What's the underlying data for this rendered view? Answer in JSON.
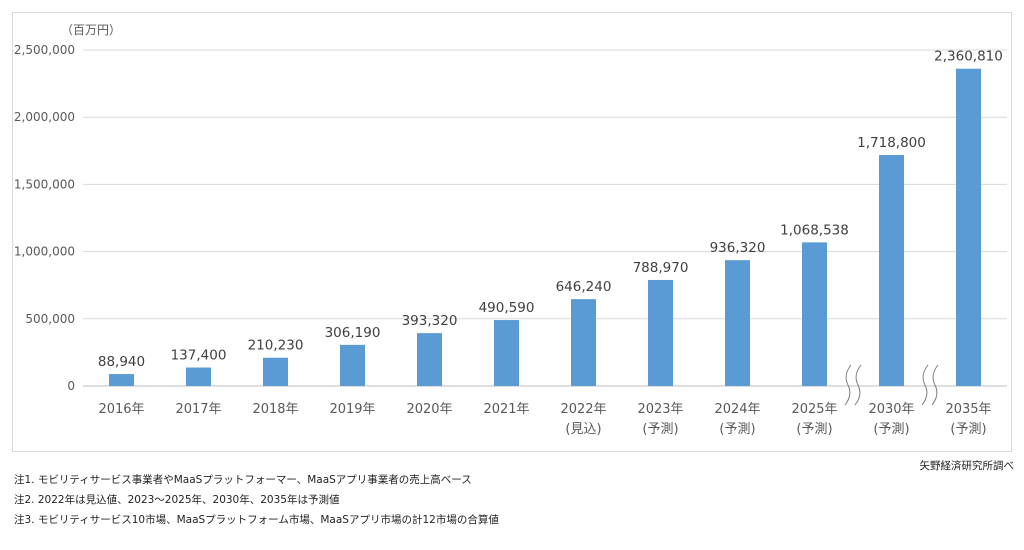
{
  "chart_data": {
    "type": "bar",
    "unit_label": "（百万円）",
    "categories": [
      [
        "2016年"
      ],
      [
        "2017年"
      ],
      [
        "2018年"
      ],
      [
        "2019年"
      ],
      [
        "2020年"
      ],
      [
        "2021年"
      ],
      [
        "2022年",
        "(見込)"
      ],
      [
        "2023年",
        "(予測)"
      ],
      [
        "2024年",
        "(予測)"
      ],
      [
        "2025年",
        "(予測)"
      ],
      [
        "2030年",
        "(予測)"
      ],
      [
        "2035年",
        "(予測)"
      ]
    ],
    "values": [
      88940,
      137400,
      210230,
      306190,
      393320,
      490590,
      646240,
      788970,
      936320,
      1068538,
      1718800,
      2360810
    ],
    "value_labels": [
      "88,940",
      "137,400",
      "210,230",
      "306,190",
      "393,320",
      "490,590",
      "646,240",
      "788,970",
      "936,320",
      "1,068,538",
      "1,718,800",
      "2,360,810"
    ],
    "y_ticks": [
      0,
      500000,
      1000000,
      1500000,
      2000000,
      2500000
    ],
    "y_tick_labels": [
      "0",
      "500,000",
      "1,000,000",
      "1,500,000",
      "2,000,000",
      "2,500,000"
    ],
    "ylim": [
      0,
      2500000
    ],
    "grid": true,
    "bar_color": "#5b9bd5",
    "axis_breaks_before": [
      10,
      11
    ]
  },
  "notes": [
    "注1. モビリティサービス事業者やMaaSプラットフォーマー、MaaSアプリ事業者の売上高ベース",
    "注2. 2022年は見込値、2023～2025年、2030年、2035年は予測値",
    "注3. モビリティサービス10市場、MaaSプラットフォーム市場、MaaSアプリ市場の計12市場の合算値"
  ],
  "source": "矢野経済研究所調べ"
}
